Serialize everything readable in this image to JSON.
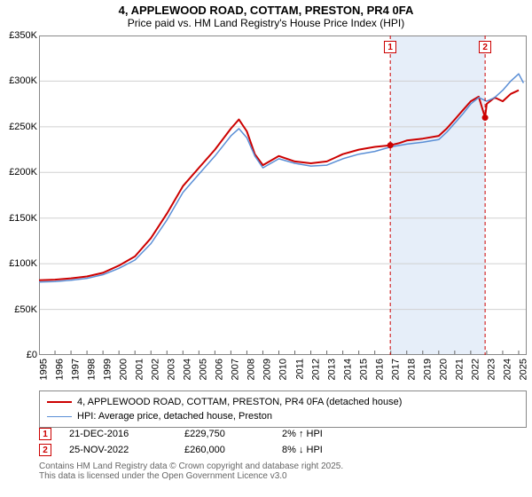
{
  "title": "4, APPLEWOOD ROAD, COTTAM, PRESTON, PR4 0FA",
  "subtitle": "Price paid vs. HM Land Registry's House Price Index (HPI)",
  "chart": {
    "type": "line",
    "background_color": "#ffffff",
    "plot_border_color": "#888888",
    "grid_color": "#d0d0d0",
    "shaded_band_color": "#e6eef9",
    "x_axis": {
      "min": 1995,
      "max": 2025.5,
      "ticks": [
        1995,
        1996,
        1997,
        1998,
        1999,
        2000,
        2001,
        2002,
        2003,
        2004,
        2005,
        2006,
        2007,
        2008,
        2009,
        2010,
        2011,
        2012,
        2013,
        2014,
        2015,
        2016,
        2017,
        2018,
        2019,
        2020,
        2021,
        2022,
        2023,
        2024,
        2025
      ],
      "label_fontsize": 11,
      "label_rotation": -90
    },
    "y_axis": {
      "min": 0,
      "max": 350000,
      "ticks": [
        0,
        50000,
        100000,
        150000,
        200000,
        250000,
        300000,
        350000
      ],
      "tick_labels": [
        "£0",
        "£50K",
        "£100K",
        "£150K",
        "£200K",
        "£250K",
        "£300K",
        "£350K"
      ],
      "label_fontsize": 11
    },
    "shaded_band": {
      "x_start": 2016.97,
      "x_end": 2022.9
    },
    "series": [
      {
        "name": "price_paid",
        "label": "4, APPLEWOOD ROAD, COTTAM, PRESTON, PR4 0FA (detached house)",
        "color": "#cc0000",
        "line_width": 2,
        "points": [
          [
            1995,
            82000
          ],
          [
            1996,
            82500
          ],
          [
            1997,
            84000
          ],
          [
            1998,
            86000
          ],
          [
            1999,
            90000
          ],
          [
            2000,
            98000
          ],
          [
            2001,
            108000
          ],
          [
            2002,
            128000
          ],
          [
            2003,
            155000
          ],
          [
            2004,
            185000
          ],
          [
            2005,
            205000
          ],
          [
            2006,
            225000
          ],
          [
            2007,
            248000
          ],
          [
            2007.5,
            258000
          ],
          [
            2008,
            245000
          ],
          [
            2008.5,
            220000
          ],
          [
            2009,
            208000
          ],
          [
            2010,
            218000
          ],
          [
            2011,
            212000
          ],
          [
            2012,
            210000
          ],
          [
            2013,
            212000
          ],
          [
            2014,
            220000
          ],
          [
            2015,
            225000
          ],
          [
            2016,
            228000
          ],
          [
            2016.97,
            229750
          ],
          [
            2017.5,
            232000
          ],
          [
            2018,
            235000
          ],
          [
            2019,
            237000
          ],
          [
            2020,
            240000
          ],
          [
            2020.5,
            248000
          ],
          [
            2021,
            258000
          ],
          [
            2021.5,
            268000
          ],
          [
            2022,
            278000
          ],
          [
            2022.5,
            283000
          ],
          [
            2022.9,
            260000
          ],
          [
            2023,
            275000
          ],
          [
            2023.5,
            282000
          ],
          [
            2024,
            278000
          ],
          [
            2024.5,
            286000
          ],
          [
            2025,
            290000
          ]
        ]
      },
      {
        "name": "hpi",
        "label": "HPI: Average price, detached house, Preston",
        "color": "#5b8fd6",
        "line_width": 1.5,
        "points": [
          [
            1995,
            80000
          ],
          [
            1996,
            80500
          ],
          [
            1997,
            82000
          ],
          [
            1998,
            84000
          ],
          [
            1999,
            88000
          ],
          [
            2000,
            95000
          ],
          [
            2001,
            104000
          ],
          [
            2002,
            122000
          ],
          [
            2003,
            148000
          ],
          [
            2004,
            178000
          ],
          [
            2005,
            198000
          ],
          [
            2006,
            218000
          ],
          [
            2007,
            240000
          ],
          [
            2007.5,
            248000
          ],
          [
            2008,
            238000
          ],
          [
            2008.5,
            218000
          ],
          [
            2009,
            205000
          ],
          [
            2010,
            215000
          ],
          [
            2011,
            210000
          ],
          [
            2012,
            207000
          ],
          [
            2013,
            208000
          ],
          [
            2014,
            215000
          ],
          [
            2015,
            220000
          ],
          [
            2016,
            223000
          ],
          [
            2017,
            228000
          ],
          [
            2018,
            231000
          ],
          [
            2019,
            233000
          ],
          [
            2020,
            236000
          ],
          [
            2020.5,
            244000
          ],
          [
            2021,
            254000
          ],
          [
            2021.5,
            264000
          ],
          [
            2022,
            275000
          ],
          [
            2022.5,
            282000
          ],
          [
            2023,
            278000
          ],
          [
            2023.5,
            282000
          ],
          [
            2024,
            290000
          ],
          [
            2024.5,
            300000
          ],
          [
            2025,
            308000
          ],
          [
            2025.3,
            298000
          ]
        ]
      }
    ],
    "markers": [
      {
        "id": "1",
        "x": 2016.97,
        "y": 229750,
        "badge_color": "#cc0000"
      },
      {
        "id": "2",
        "x": 2022.9,
        "y": 260000,
        "badge_color": "#cc0000"
      }
    ]
  },
  "legend": {
    "border_color": "#888888",
    "items": [
      {
        "color": "#cc0000",
        "width": 2,
        "label": "4, APPLEWOOD ROAD, COTTAM, PRESTON, PR4 0FA (detached house)"
      },
      {
        "color": "#5b8fd6",
        "width": 1.5,
        "label": "HPI: Average price, detached house, Preston"
      }
    ]
  },
  "annotations": [
    {
      "id": "1",
      "date": "21-DEC-2016",
      "price": "£229,750",
      "delta": "2% ↑ HPI",
      "badge_color": "#cc0000"
    },
    {
      "id": "2",
      "date": "25-NOV-2022",
      "price": "£260,000",
      "delta": "8% ↓ HPI",
      "badge_color": "#cc0000"
    }
  ],
  "footer": {
    "line1": "Contains HM Land Registry data © Crown copyright and database right 2025.",
    "line2": "This data is licensed under the Open Government Licence v3.0"
  }
}
